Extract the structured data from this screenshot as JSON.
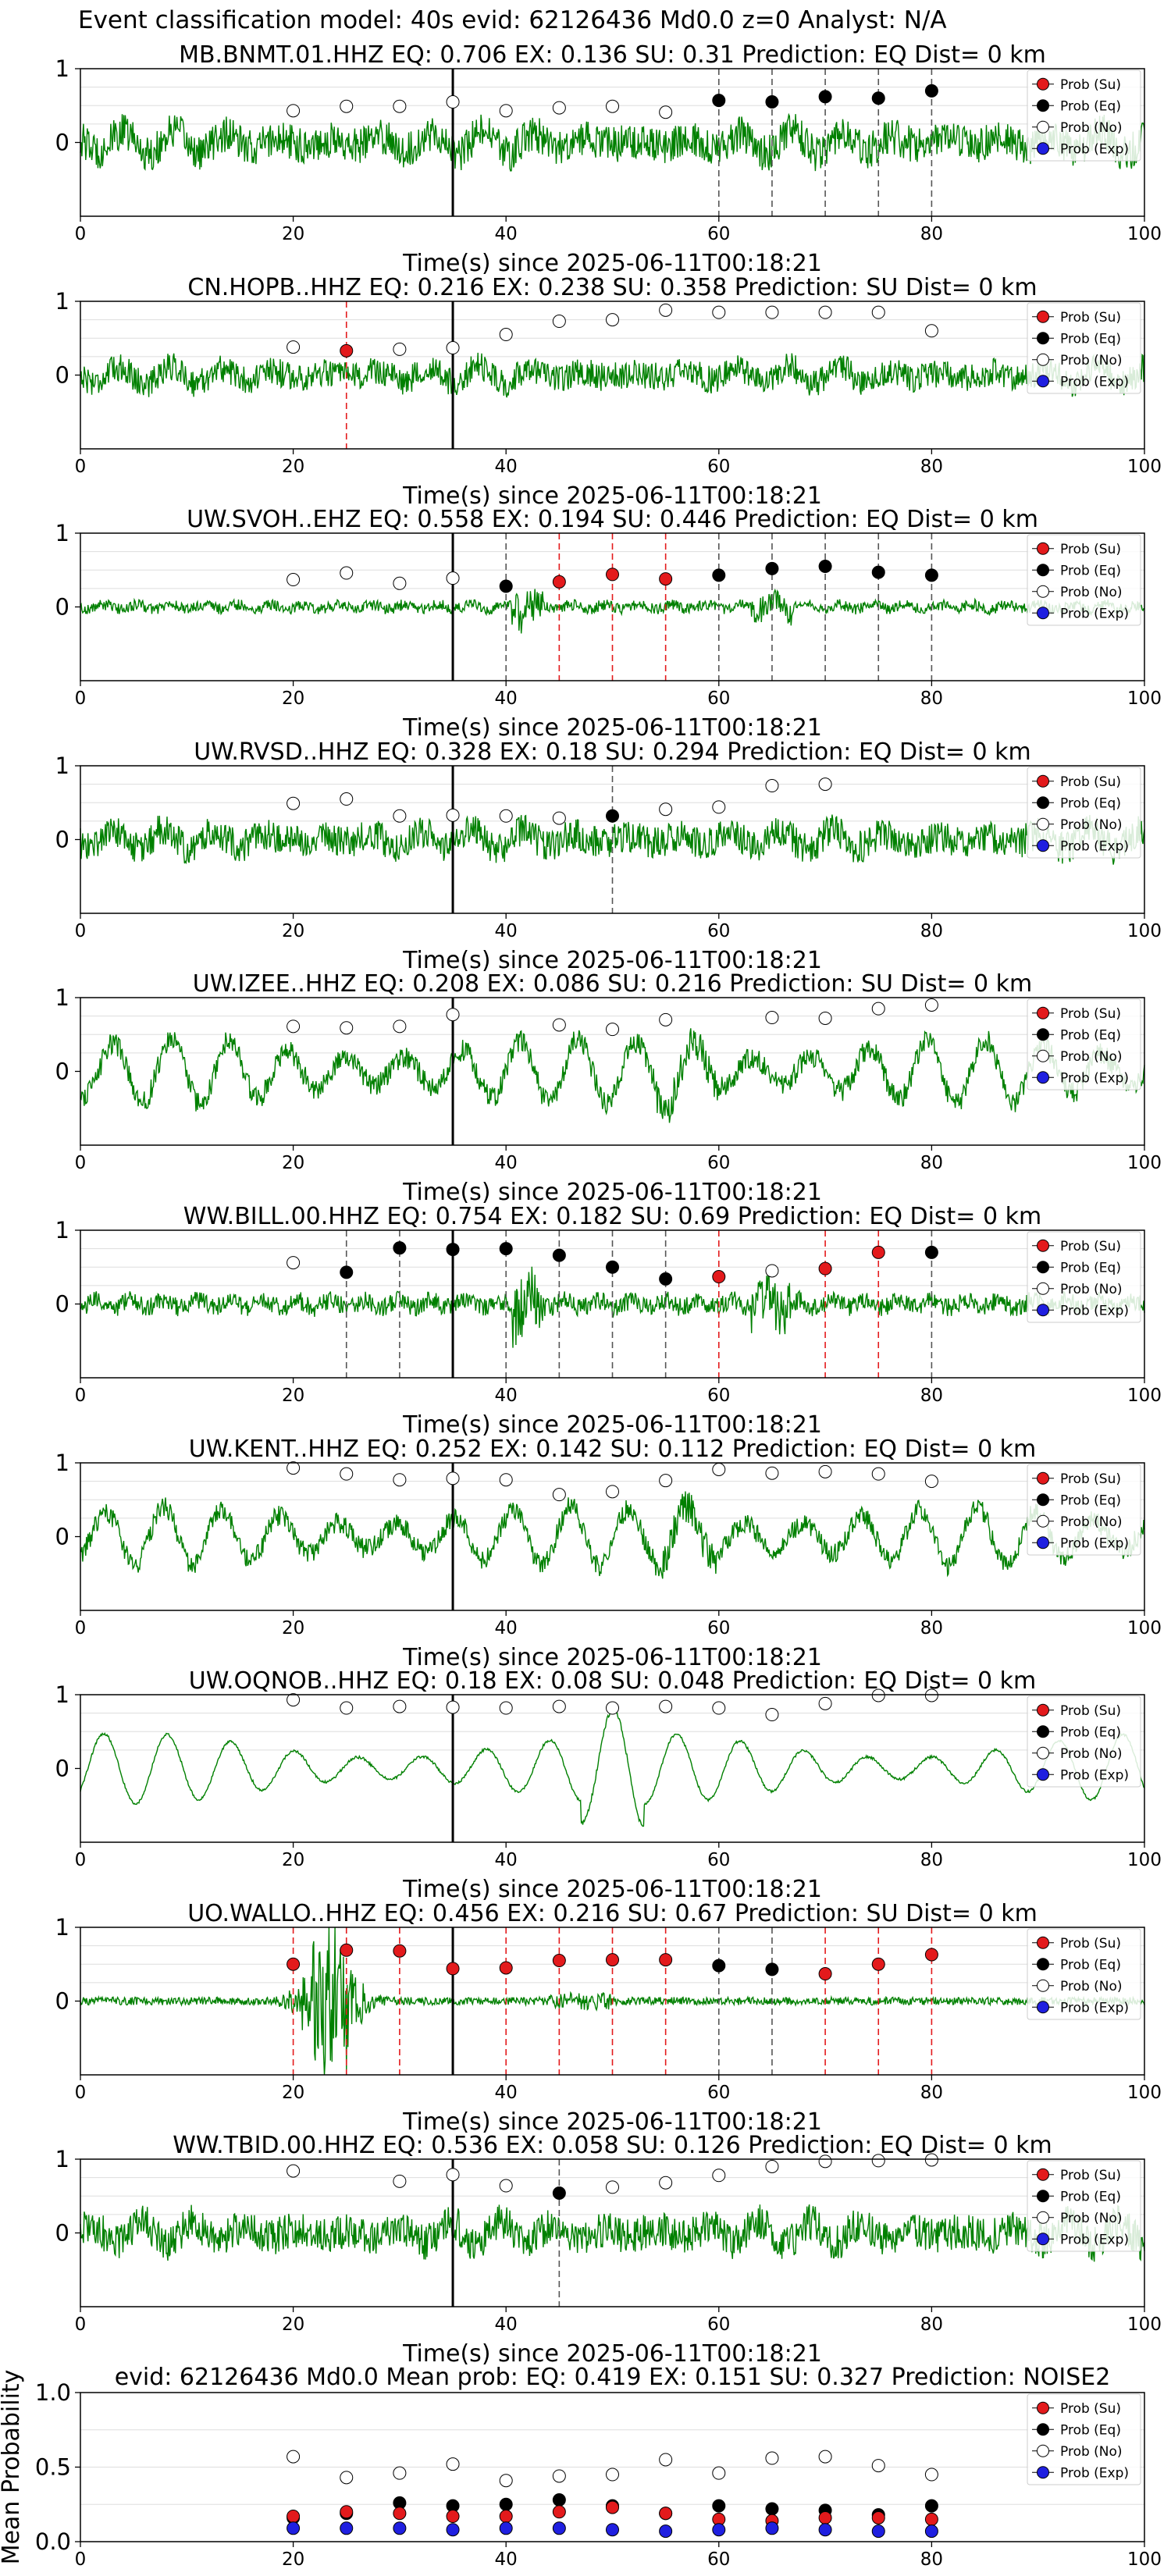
{
  "figure_title": "Event classification model: 40s evid: 62126436 Md0.0 z=0 Analyst: N/A",
  "legend": [
    "Prob (Su)",
    "Prob (Eq)",
    "Prob (No)",
    "Prob (Exp)"
  ],
  "colors": {
    "waveform": "#008000",
    "su": "#e31a1c",
    "eq": "#000000",
    "no": "#ffffff",
    "exp": "#1f1fe0",
    "su_line": "#e31a1c",
    "eq_line": "#555555",
    "arrival": "#000000"
  },
  "chart_data": [
    {
      "type": "line",
      "title": "MB.BNMT.01.HHZ   EQ: 0.706  EX: 0.136  SU: 0.31   Prediction: EQ    Dist= 0 km",
      "xlabel": "Time(s) since 2025-06-11T00:18:21",
      "xlim": [
        0,
        100
      ],
      "xticks": [
        0,
        20,
        40,
        60,
        80,
        100
      ],
      "ylim": [
        -1,
        1
      ],
      "yticks": [
        0,
        1
      ],
      "arrival_time": 35,
      "waveform": {
        "character": "noisy",
        "amplitude": 0.45
      },
      "points": [
        {
          "x": 20,
          "cls": "no",
          "y": 0.43
        },
        {
          "x": 25,
          "cls": "no",
          "y": 0.49
        },
        {
          "x": 30,
          "cls": "no",
          "y": 0.49
        },
        {
          "x": 35,
          "cls": "no",
          "y": 0.55
        },
        {
          "x": 40,
          "cls": "no",
          "y": 0.43
        },
        {
          "x": 45,
          "cls": "no",
          "y": 0.47
        },
        {
          "x": 50,
          "cls": "no",
          "y": 0.49
        },
        {
          "x": 55,
          "cls": "no",
          "y": 0.41
        },
        {
          "x": 60,
          "cls": "eq",
          "y": 0.57
        },
        {
          "x": 65,
          "cls": "eq",
          "y": 0.55
        },
        {
          "x": 70,
          "cls": "eq",
          "y": 0.62
        },
        {
          "x": 75,
          "cls": "eq",
          "y": 0.6
        },
        {
          "x": 80,
          "cls": "eq",
          "y": 0.7
        }
      ]
    },
    {
      "type": "line",
      "title": "CN.HOPB..HHZ   EQ: 0.216  EX: 0.238  SU: 0.358   Prediction: SU    Dist= 0 km",
      "xlabel": "Time(s) since 2025-06-11T00:18:21",
      "xlim": [
        0,
        100
      ],
      "xticks": [
        0,
        20,
        40,
        60,
        80,
        100
      ],
      "ylim": [
        -1,
        1
      ],
      "yticks": [
        0,
        1
      ],
      "arrival_time": 35,
      "waveform": {
        "character": "noisy",
        "amplitude": 0.35
      },
      "points": [
        {
          "x": 20,
          "cls": "no",
          "y": 0.38
        },
        {
          "x": 25,
          "cls": "su",
          "y": 0.33
        },
        {
          "x": 30,
          "cls": "no",
          "y": 0.35
        },
        {
          "x": 35,
          "cls": "no",
          "y": 0.37
        },
        {
          "x": 40,
          "cls": "no",
          "y": 0.55
        },
        {
          "x": 45,
          "cls": "no",
          "y": 0.73
        },
        {
          "x": 50,
          "cls": "no",
          "y": 0.75
        },
        {
          "x": 55,
          "cls": "no",
          "y": 0.88
        },
        {
          "x": 60,
          "cls": "no",
          "y": 0.85
        },
        {
          "x": 65,
          "cls": "no",
          "y": 0.85
        },
        {
          "x": 70,
          "cls": "no",
          "y": 0.85
        },
        {
          "x": 75,
          "cls": "no",
          "y": 0.85
        },
        {
          "x": 80,
          "cls": "no",
          "y": 0.6
        }
      ]
    },
    {
      "type": "line",
      "title": "UW.SVOH..EHZ   EQ: 0.558  EX: 0.194  SU: 0.446   Prediction: EQ    Dist= 0 km",
      "xlabel": "Time(s) since 2025-06-11T00:18:21",
      "xlim": [
        0,
        100
      ],
      "xticks": [
        0,
        20,
        40,
        60,
        80,
        100
      ],
      "ylim": [
        -1,
        1
      ],
      "yticks": [
        0,
        1
      ],
      "arrival_time": 35,
      "waveform": {
        "character": "quiet",
        "amplitude": 0.15
      },
      "points": [
        {
          "x": 20,
          "cls": "no",
          "y": 0.37
        },
        {
          "x": 25,
          "cls": "no",
          "y": 0.46
        },
        {
          "x": 30,
          "cls": "no",
          "y": 0.32
        },
        {
          "x": 35,
          "cls": "no",
          "y": 0.39
        },
        {
          "x": 40,
          "cls": "eq",
          "y": 0.28
        },
        {
          "x": 45,
          "cls": "su",
          "y": 0.34
        },
        {
          "x": 50,
          "cls": "su",
          "y": 0.44
        },
        {
          "x": 55,
          "cls": "su",
          "y": 0.38
        },
        {
          "x": 60,
          "cls": "eq",
          "y": 0.43
        },
        {
          "x": 65,
          "cls": "eq",
          "y": 0.52
        },
        {
          "x": 70,
          "cls": "eq",
          "y": 0.55
        },
        {
          "x": 75,
          "cls": "eq",
          "y": 0.47
        },
        {
          "x": 80,
          "cls": "eq",
          "y": 0.43
        }
      ]
    },
    {
      "type": "line",
      "title": "UW.RVSD..HHZ   EQ: 0.328  EX: 0.18  SU: 0.294   Prediction: EQ    Dist= 0 km",
      "xlabel": "Time(s) since 2025-06-11T00:18:21",
      "xlim": [
        0,
        100
      ],
      "xticks": [
        0,
        20,
        40,
        60,
        80,
        100
      ],
      "ylim": [
        -1,
        1
      ],
      "yticks": [
        0,
        1
      ],
      "arrival_time": 35,
      "waveform": {
        "character": "noisy",
        "amplitude": 0.4
      },
      "points": [
        {
          "x": 20,
          "cls": "no",
          "y": 0.49
        },
        {
          "x": 25,
          "cls": "no",
          "y": 0.55
        },
        {
          "x": 30,
          "cls": "no",
          "y": 0.32
        },
        {
          "x": 35,
          "cls": "no",
          "y": 0.33
        },
        {
          "x": 40,
          "cls": "no",
          "y": 0.32
        },
        {
          "x": 45,
          "cls": "no",
          "y": 0.29
        },
        {
          "x": 50,
          "cls": "eq",
          "y": 0.32
        },
        {
          "x": 55,
          "cls": "no",
          "y": 0.41
        },
        {
          "x": 60,
          "cls": "no",
          "y": 0.44
        },
        {
          "x": 65,
          "cls": "no",
          "y": 0.73
        },
        {
          "x": 70,
          "cls": "no",
          "y": 0.75
        }
      ]
    },
    {
      "type": "line",
      "title": "UW.IZEE..HHZ   EQ: 0.208  EX: 0.086  SU: 0.216   Prediction: SU    Dist= 0 km",
      "xlabel": "Time(s) since 2025-06-11T00:18:21",
      "xlim": [
        0,
        100
      ],
      "xticks": [
        0,
        20,
        40,
        60,
        80,
        100
      ],
      "ylim": [
        -1,
        1
      ],
      "yticks": [
        0,
        1
      ],
      "arrival_time": 35,
      "waveform": {
        "character": "oscillating",
        "amplitude": 0.6
      },
      "points": [
        {
          "x": 20,
          "cls": "no",
          "y": 0.61
        },
        {
          "x": 25,
          "cls": "no",
          "y": 0.59
        },
        {
          "x": 30,
          "cls": "no",
          "y": 0.61
        },
        {
          "x": 35,
          "cls": "no",
          "y": 0.77
        },
        {
          "x": 45,
          "cls": "no",
          "y": 0.63
        },
        {
          "x": 50,
          "cls": "no",
          "y": 0.57
        },
        {
          "x": 55,
          "cls": "no",
          "y": 0.7
        },
        {
          "x": 65,
          "cls": "no",
          "y": 0.73
        },
        {
          "x": 70,
          "cls": "no",
          "y": 0.72
        },
        {
          "x": 75,
          "cls": "no",
          "y": 0.85
        },
        {
          "x": 80,
          "cls": "no",
          "y": 0.9
        }
      ]
    },
    {
      "type": "line",
      "title": "WW.BILL.00.HHZ   EQ: 0.754  EX: 0.182  SU: 0.69   Prediction: EQ    Dist= 0 km",
      "xlabel": "Time(s) since 2025-06-11T00:18:21",
      "xlim": [
        0,
        100
      ],
      "xticks": [
        0,
        20,
        40,
        60,
        80,
        100
      ],
      "ylim": [
        -1,
        1
      ],
      "yticks": [
        0,
        1
      ],
      "arrival_time": 35,
      "waveform": {
        "character": "quiet",
        "amplitude": 0.25
      },
      "points": [
        {
          "x": 20,
          "cls": "no",
          "y": 0.56
        },
        {
          "x": 25,
          "cls": "eq",
          "y": 0.43
        },
        {
          "x": 30,
          "cls": "eq",
          "y": 0.76
        },
        {
          "x": 35,
          "cls": "eq",
          "y": 0.74
        },
        {
          "x": 40,
          "cls": "eq",
          "y": 0.75
        },
        {
          "x": 45,
          "cls": "eq",
          "y": 0.66
        },
        {
          "x": 50,
          "cls": "eq",
          "y": 0.5
        },
        {
          "x": 55,
          "cls": "eq",
          "y": 0.34
        },
        {
          "x": 60,
          "cls": "su",
          "y": 0.37
        },
        {
          "x": 65,
          "cls": "no",
          "y": 0.45
        },
        {
          "x": 70,
          "cls": "su",
          "y": 0.48
        },
        {
          "x": 75,
          "cls": "su",
          "y": 0.7
        },
        {
          "x": 80,
          "cls": "eq",
          "y": 0.7
        }
      ]
    },
    {
      "type": "line",
      "title": "UW.KENT..HHZ   EQ: 0.252  EX: 0.142  SU: 0.112   Prediction: EQ    Dist= 0 km",
      "xlabel": "Time(s) since 2025-06-11T00:18:21",
      "xlim": [
        0,
        100
      ],
      "xticks": [
        0,
        20,
        40,
        60,
        80,
        100
      ],
      "ylim": [
        -1,
        1
      ],
      "yticks": [
        0,
        1
      ],
      "arrival_time": 35,
      "waveform": {
        "character": "oscillating",
        "amplitude": 0.55
      },
      "points": [
        {
          "x": 20,
          "cls": "no",
          "y": 0.93
        },
        {
          "x": 25,
          "cls": "no",
          "y": 0.85
        },
        {
          "x": 30,
          "cls": "no",
          "y": 0.77
        },
        {
          "x": 35,
          "cls": "no",
          "y": 0.79
        },
        {
          "x": 40,
          "cls": "no",
          "y": 0.77
        },
        {
          "x": 45,
          "cls": "no",
          "y": 0.57
        },
        {
          "x": 50,
          "cls": "no",
          "y": 0.61
        },
        {
          "x": 55,
          "cls": "no",
          "y": 0.76
        },
        {
          "x": 60,
          "cls": "no",
          "y": 0.91
        },
        {
          "x": 65,
          "cls": "no",
          "y": 0.86
        },
        {
          "x": 70,
          "cls": "no",
          "y": 0.88
        },
        {
          "x": 75,
          "cls": "no",
          "y": 0.85
        },
        {
          "x": 80,
          "cls": "no",
          "y": 0.75
        }
      ]
    },
    {
      "type": "line",
      "title": "UW.OQNOB..HHZ   EQ: 0.18  EX: 0.08  SU: 0.048   Prediction: EQ    Dist= 0 km",
      "xlabel": "Time(s) since 2025-06-11T00:18:21",
      "xlim": [
        0,
        100
      ],
      "xticks": [
        0,
        20,
        40,
        60,
        80,
        100
      ],
      "ylim": [
        -1,
        1
      ],
      "yticks": [
        0,
        1
      ],
      "arrival_time": 35,
      "waveform": {
        "character": "smooth",
        "amplitude": 0.6
      },
      "points": [
        {
          "x": 20,
          "cls": "no",
          "y": 0.93
        },
        {
          "x": 25,
          "cls": "no",
          "y": 0.82
        },
        {
          "x": 30,
          "cls": "no",
          "y": 0.84
        },
        {
          "x": 35,
          "cls": "no",
          "y": 0.83
        },
        {
          "x": 40,
          "cls": "no",
          "y": 0.82
        },
        {
          "x": 45,
          "cls": "no",
          "y": 0.84
        },
        {
          "x": 50,
          "cls": "no",
          "y": 0.82
        },
        {
          "x": 55,
          "cls": "no",
          "y": 0.84
        },
        {
          "x": 60,
          "cls": "no",
          "y": 0.82
        },
        {
          "x": 65,
          "cls": "no",
          "y": 0.73
        },
        {
          "x": 70,
          "cls": "no",
          "y": 0.88
        },
        {
          "x": 75,
          "cls": "no",
          "y": 0.99
        },
        {
          "x": 80,
          "cls": "no",
          "y": 0.99
        }
      ]
    },
    {
      "type": "line",
      "title": "UO.WALLO..HHZ   EQ: 0.456  EX: 0.216  SU: 0.67   Prediction: SU    Dist= 0 km",
      "xlabel": "Time(s) since 2025-06-11T00:18:21",
      "xlim": [
        0,
        100
      ],
      "xticks": [
        0,
        20,
        40,
        60,
        80,
        100
      ],
      "ylim": [
        -1,
        1
      ],
      "yticks": [
        0,
        1
      ],
      "arrival_time": 35,
      "waveform": {
        "character": "burst",
        "amplitude": 0.12
      },
      "points": [
        {
          "x": 20,
          "cls": "su",
          "y": 0.5
        },
        {
          "x": 25,
          "cls": "su",
          "y": 0.69
        },
        {
          "x": 30,
          "cls": "su",
          "y": 0.68
        },
        {
          "x": 35,
          "cls": "su",
          "y": 0.44
        },
        {
          "x": 40,
          "cls": "su",
          "y": 0.45
        },
        {
          "x": 45,
          "cls": "su",
          "y": 0.55
        },
        {
          "x": 50,
          "cls": "su",
          "y": 0.56
        },
        {
          "x": 55,
          "cls": "su",
          "y": 0.56
        },
        {
          "x": 60,
          "cls": "eq",
          "y": 0.48
        },
        {
          "x": 65,
          "cls": "eq",
          "y": 0.43
        },
        {
          "x": 70,
          "cls": "su",
          "y": 0.37
        },
        {
          "x": 75,
          "cls": "su",
          "y": 0.5
        },
        {
          "x": 80,
          "cls": "su",
          "y": 0.63
        }
      ]
    },
    {
      "type": "line",
      "title": "WW.TBID.00.HHZ   EQ: 0.536  EX: 0.058  SU: 0.126   Prediction: EQ    Dist= 0 km",
      "xlabel": "Time(s) since 2025-06-11T00:18:21",
      "xlim": [
        0,
        100
      ],
      "xticks": [
        0,
        20,
        40,
        60,
        80,
        100
      ],
      "ylim": [
        -1,
        1
      ],
      "yticks": [
        0,
        1
      ],
      "arrival_time": 35,
      "waveform": {
        "character": "noisy",
        "amplitude": 0.45
      },
      "points": [
        {
          "x": 20,
          "cls": "no",
          "y": 0.84
        },
        {
          "x": 30,
          "cls": "no",
          "y": 0.7
        },
        {
          "x": 35,
          "cls": "no",
          "y": 0.79
        },
        {
          "x": 40,
          "cls": "no",
          "y": 0.64
        },
        {
          "x": 45,
          "cls": "eq",
          "y": 0.54
        },
        {
          "x": 50,
          "cls": "no",
          "y": 0.62
        },
        {
          "x": 55,
          "cls": "no",
          "y": 0.68
        },
        {
          "x": 60,
          "cls": "no",
          "y": 0.78
        },
        {
          "x": 65,
          "cls": "no",
          "y": 0.9
        },
        {
          "x": 70,
          "cls": "no",
          "y": 0.97
        },
        {
          "x": 75,
          "cls": "no",
          "y": 0.98
        },
        {
          "x": 80,
          "cls": "no",
          "y": 0.99
        }
      ]
    },
    {
      "type": "scatter",
      "title": "evid: 62126436  Md0.0   Mean prob:   EQ: 0.419  EX: 0.151  SU: 0.327   Prediction: NOISE2",
      "xlabel": "",
      "ylabel": "Mean Probability",
      "xlim": [
        0,
        100
      ],
      "xticks": [
        0,
        20,
        40,
        60,
        80,
        100
      ],
      "ylim": [
        0,
        1
      ],
      "yticks": [
        0.0,
        0.5,
        1.0
      ],
      "x": [
        20,
        25,
        30,
        35,
        40,
        45,
        50,
        55,
        60,
        65,
        70,
        75,
        80
      ],
      "series": [
        {
          "key": "no",
          "values": [
            0.57,
            0.43,
            0.46,
            0.52,
            0.41,
            0.44,
            0.45,
            0.55,
            0.46,
            0.56,
            0.57,
            0.51,
            0.45
          ]
        },
        {
          "key": "eq",
          "values": [
            0.16,
            0.19,
            0.26,
            0.24,
            0.25,
            0.28,
            0.24,
            0.19,
            0.24,
            0.22,
            0.21,
            0.18,
            0.24
          ]
        },
        {
          "key": "su",
          "values": [
            0.17,
            0.2,
            0.19,
            0.17,
            0.17,
            0.2,
            0.23,
            0.19,
            0.15,
            0.14,
            0.16,
            0.16,
            0.15
          ]
        },
        {
          "key": "exp",
          "values": [
            0.09,
            0.09,
            0.09,
            0.08,
            0.09,
            0.09,
            0.08,
            0.07,
            0.08,
            0.09,
            0.08,
            0.07,
            0.07
          ]
        }
      ]
    }
  ]
}
